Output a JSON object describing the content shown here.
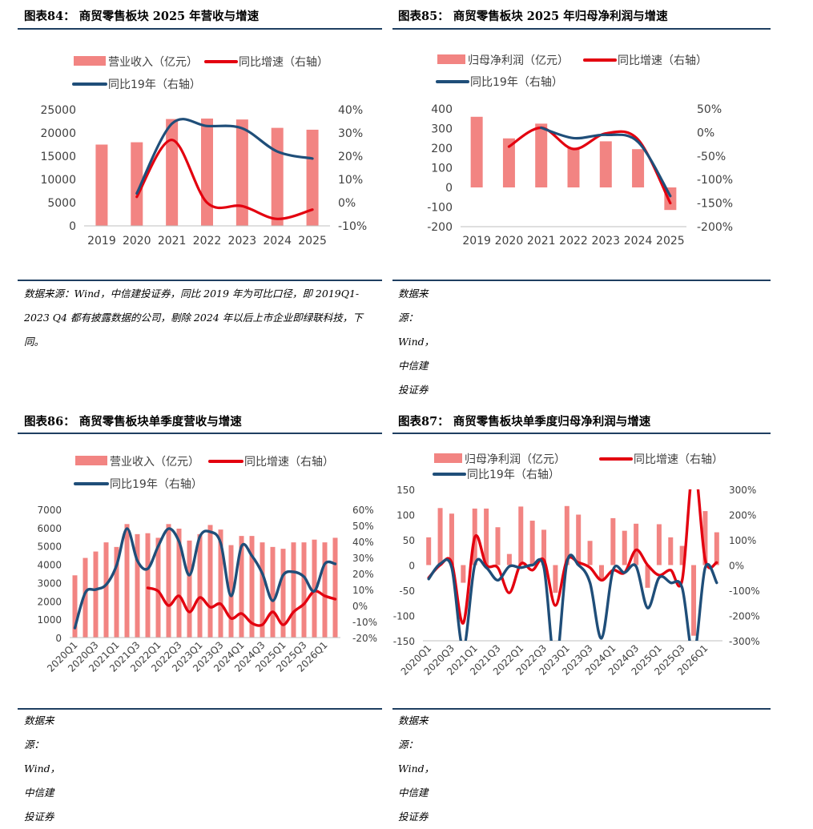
{
  "colors": {
    "bar": "#f28482",
    "red": "#e3000f",
    "blue": "#1f4e79",
    "rule": "#1f3f61",
    "axis": "#bfbfbf"
  },
  "panels": [
    {
      "title": "图表84：  商贸零售板块 2025 年营收与增速",
      "source": "数据来源：Wind，中信建投证券，同比 2019 年为可比口径，即 2019Q1-2023 Q4 都有披露数据的公司，剔除 2024 年以后上市企业即绿联科技，下同。",
      "chart_data": {
        "type": "bar",
        "categories": [
          "2019",
          "2020",
          "2021",
          "2022",
          "2023",
          "2024",
          "2025"
        ],
        "y_left": {
          "min": 0,
          "max": 25000,
          "ticks": [
            "0",
            "5000",
            "10000",
            "15000",
            "20000",
            "25000"
          ]
        },
        "y_right": {
          "min": -10,
          "max": 40,
          "ticks": [
            "-10%",
            "0%",
            "10%",
            "20%",
            "30%",
            "40%"
          ]
        },
        "legend": [
          "营业收入（亿元）",
          "同比增速（右轴）",
          "同比19年（右轴）"
        ],
        "series": [
          {
            "name": "营业收入（亿元）",
            "kind": "bar",
            "axis": "left",
            "values": [
              17500,
              18000,
              23000,
              23100,
              22900,
              21100,
              20700
            ]
          },
          {
            "name": "同比增速（右轴）",
            "kind": "line",
            "axis": "right",
            "values": [
              null,
              2.5,
              27,
              0,
              -1.5,
              -7,
              -3
            ]
          },
          {
            "name": "同比19年（右轴）",
            "kind": "line",
            "axis": "right",
            "values": [
              null,
              4,
              34,
              33,
              32,
              22,
              19
            ]
          }
        ]
      }
    },
    {
      "title": "图表85：  商贸零售板块 2025 年归母净利润与增速",
      "source": "数据来源：Wind，中信建投证券",
      "chart_data": {
        "type": "bar",
        "categories": [
          "2019",
          "2020",
          "2021",
          "2022",
          "2023",
          "2024",
          "2025"
        ],
        "y_left": {
          "min": -200,
          "max": 400,
          "ticks": [
            "-200",
            "-100",
            "0",
            "100",
            "200",
            "300",
            "400"
          ]
        },
        "y_right": {
          "min": -200,
          "max": 50,
          "ticks": [
            "-200%",
            "-150%",
            "-100%",
            "-50%",
            "0%",
            "50%"
          ]
        },
        "legend": [
          "归母净利润（亿元）",
          "同比增速（右轴）",
          "同比19年（右轴）"
        ],
        "series": [
          {
            "name": "归母净利润（亿元）",
            "kind": "bar",
            "axis": "left",
            "values": [
              360,
              250,
              325,
              200,
              235,
              195,
              -115
            ]
          },
          {
            "name": "同比增速（右轴）",
            "kind": "line",
            "axis": "right",
            "values": [
              null,
              -30,
              10,
              -35,
              -2,
              -15,
              -150
            ]
          },
          {
            "name": "同比19年（右轴）",
            "kind": "line",
            "axis": "right",
            "values": [
              null,
              null,
              10,
              -12,
              -5,
              -20,
              -135
            ]
          }
        ]
      }
    },
    {
      "title": "图表86：  商贸零售板块单季度营收与增速",
      "source": "数据来源：Wind，中信建投证券",
      "chart_data": {
        "type": "bar",
        "categories": [
          "2020Q1",
          "2020Q2",
          "2020Q3",
          "2020Q4",
          "2021Q1",
          "2021Q2",
          "2021Q3",
          "2021Q4",
          "2022Q1",
          "2022Q2",
          "2022Q3",
          "2022Q4",
          "2023Q1",
          "2023Q2",
          "2023Q3",
          "2023Q4",
          "2024Q1",
          "2024Q2",
          "2024Q3",
          "2024Q4",
          "2025Q1",
          "2025Q2",
          "2025Q3",
          "2025Q4",
          "2026Q1",
          "2026Q2"
        ],
        "tick_labels": [
          "2020Q1",
          "2020Q3",
          "2021Q1",
          "2021Q3",
          "2022Q1",
          "2022Q3",
          "2023Q1",
          "2023Q3",
          "2024Q1",
          "2024Q3",
          "2025Q1",
          "2025Q3",
          "2026Q1"
        ],
        "y_left": {
          "min": 0,
          "max": 7000,
          "ticks": [
            "0",
            "1000",
            "2000",
            "3000",
            "4000",
            "5000",
            "6000",
            "7000"
          ]
        },
        "y_right": {
          "min": -20,
          "max": 60,
          "ticks": [
            "-20%",
            "-10%",
            "0%",
            "10%",
            "20%",
            "30%",
            "40%",
            "50%",
            "60%"
          ]
        },
        "legend": [
          "营业收入（亿元）",
          "同比增速（右轴）",
          "同比19年（右轴）"
        ],
        "series": [
          {
            "name": "营业收入（亿元）",
            "kind": "bar",
            "axis": "left",
            "values": [
              3400,
              4350,
              4700,
              5200,
              4950,
              6200,
              5650,
              5700,
              5450,
              6200,
              5950,
              5300,
              5650,
              6150,
              5900,
              5050,
              5550,
              5550,
              5200,
              4950,
              4850,
              5200,
              5200,
              5350,
              5200,
              5450
            ]
          },
          {
            "name": "同比增速（右轴）",
            "kind": "line",
            "axis": "right",
            "values": [
              null,
              null,
              null,
              null,
              null,
              null,
              null,
              11,
              9,
              0,
              6,
              -4,
              5,
              -1,
              1,
              -8,
              -5,
              -11,
              -12,
              -4,
              -12,
              -4,
              1,
              9,
              6,
              4
            ]
          },
          {
            "name": "同比19年（右轴）",
            "kind": "line",
            "axis": "right",
            "values": [
              -14,
              8,
              10,
              13,
              25,
              48,
              28,
              23,
              37,
              48,
              40,
              19,
              43,
              46,
              39,
              6,
              37,
              31,
              20,
              3,
              19,
              21,
              18,
              9,
              26,
              26
            ]
          }
        ]
      }
    },
    {
      "title": "图表87：  商贸零售板块单季度归母净利润与增速",
      "source": "数据来源：Wind，中信建投证券",
      "chart_data": {
        "type": "bar",
        "categories": [
          "2020Q1",
          "2020Q2",
          "2020Q3",
          "2020Q4",
          "2021Q1",
          "2021Q2",
          "2021Q3",
          "2021Q4",
          "2022Q1",
          "2022Q2",
          "2022Q3",
          "2022Q4",
          "2023Q1",
          "2023Q2",
          "2023Q3",
          "2023Q4",
          "2024Q1",
          "2024Q2",
          "2024Q3",
          "2024Q4",
          "2025Q1",
          "2025Q2",
          "2025Q3",
          "2025Q4",
          "2026Q1",
          "2026Q2"
        ],
        "tick_labels": [
          "2020Q1",
          "2020Q3",
          "2021Q1",
          "2021Q3",
          "2022Q1",
          "2022Q3",
          "2023Q1",
          "2023Q3",
          "2024Q1",
          "2024Q3",
          "2025Q1",
          "2025Q3",
          "2026Q1"
        ],
        "y_left": {
          "min": -150,
          "max": 150,
          "ticks": [
            "-150",
            "-100",
            "-50",
            "0",
            "50",
            "100",
            "150"
          ]
        },
        "y_right": {
          "min": -300,
          "max": 300,
          "ticks": [
            "-300%",
            "-200%",
            "-100%",
            "0%",
            "100%",
            "200%",
            "300%"
          ]
        },
        "legend": [
          "归母净利润（亿元）",
          "同比增速（右轴）",
          "同比19年（右轴）"
        ],
        "series": [
          {
            "name": "归母净利润（亿元）",
            "kind": "bar",
            "axis": "left",
            "values": [
              55,
              113,
              102,
              -35,
              112,
              112,
              75,
              22,
              116,
              88,
              70,
              -55,
              117,
              100,
              48,
              -30,
              93,
              68,
              82,
              -45,
              81,
              55,
              38,
              -140,
              107,
              65
            ]
          },
          {
            "name": "同比增速（右轴）",
            "kind": "line",
            "axis": "right",
            "values": [
              -50,
              0,
              10,
              -230,
              110,
              0,
              -10,
              -110,
              5,
              -20,
              20,
              -160,
              20,
              10,
              -10,
              -60,
              -20,
              -30,
              60,
              0,
              -40,
              -20,
              -60,
              400,
              20,
              10
            ]
          },
          {
            "name": "同比19年（右轴）",
            "kind": "line",
            "axis": "right",
            "values": [
              -55,
              5,
              -10,
              -330,
              0,
              -10,
              -60,
              -5,
              -10,
              0,
              -10,
              -400,
              10,
              0,
              -70,
              -290,
              -20,
              -30,
              -5,
              -170,
              -50,
              -70,
              -90,
              -360,
              -10,
              -70
            ]
          }
        ]
      }
    }
  ]
}
